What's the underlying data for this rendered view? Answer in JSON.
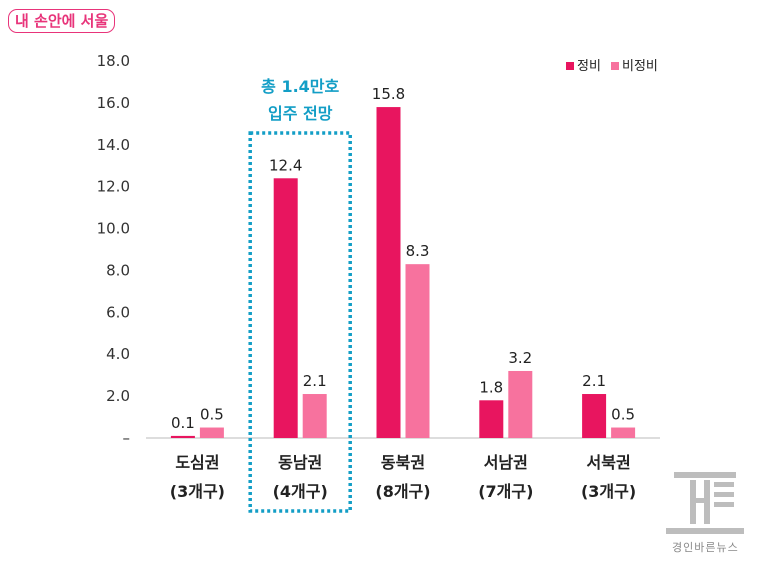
{
  "logo_text": "내 손안에 서울",
  "watermark_text": "경인바른뉴스",
  "colors": {
    "series1": "#e8155f",
    "series2": "#f7729e",
    "highlight": "#139ec6",
    "text": "#222222"
  },
  "highlight": {
    "category_index": 1,
    "line1": "총 1.4만호",
    "line2": "입주 전망"
  },
  "chart_data": {
    "type": "bar",
    "categories": [
      "도심권",
      "동남권",
      "동북권",
      "서남권",
      "서북권"
    ],
    "category_sub": [
      "(3개구)",
      "(4개구)",
      "(8개구)",
      "(7개구)",
      "(3개구)"
    ],
    "series": [
      {
        "name": "정비",
        "values": [
          0.1,
          12.4,
          15.8,
          1.8,
          2.1
        ]
      },
      {
        "name": "비정비",
        "values": [
          0.5,
          2.1,
          8.3,
          3.2,
          0.5
        ]
      }
    ],
    "ylim": [
      0,
      18
    ],
    "yticks": [
      "–",
      "2.0",
      "4.0",
      "6.0",
      "8.0",
      "10.0",
      "12.0",
      "14.0",
      "16.0",
      "18.0"
    ],
    "legend": "top-right"
  }
}
